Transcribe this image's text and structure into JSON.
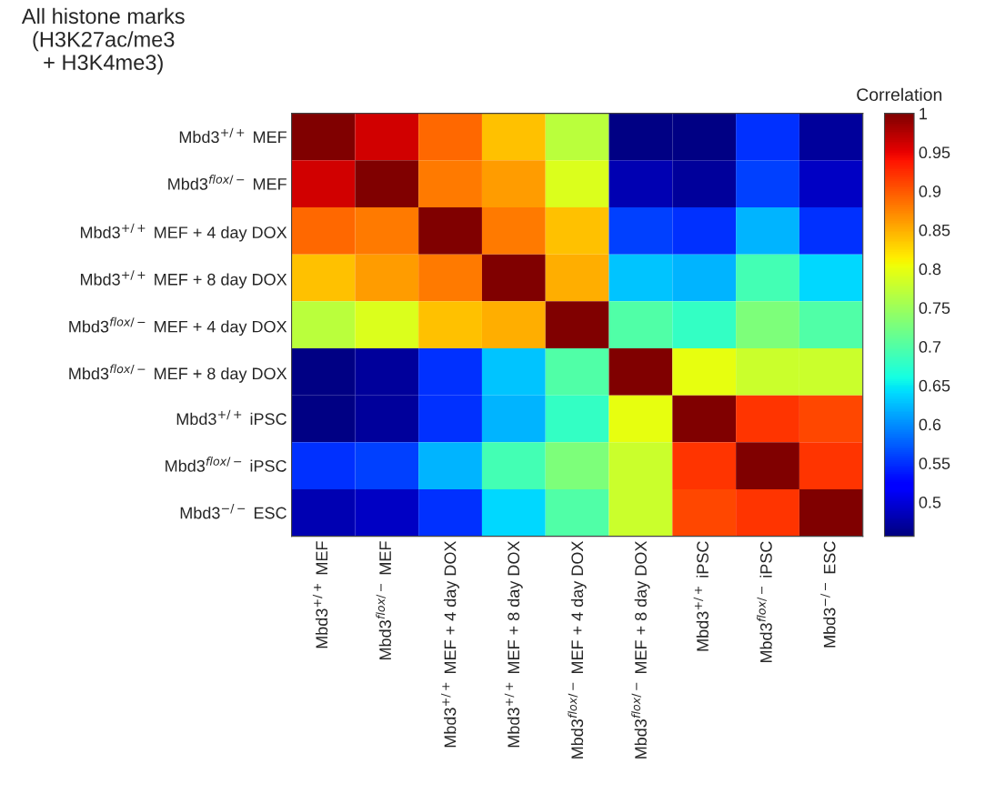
{
  "chart_data": {
    "type": "heatmap",
    "title": "All histone marks\n(H3K27ac/me3\n+ H3K4me3)",
    "clabel": "Correlation",
    "categories": [
      "Mbd3$^{+/+}$ MEF",
      "Mbd3$^{flox/−}$ MEF",
      "Mbd3$^{+/+}$ MEF + 4 day DOX",
      "Mbd3$^{+/+}$ MEF + 8 day DOX",
      "Mbd3$^{flox/−}$ MEF + 4 day DOX",
      "Mbd3$^{flox/−}$ MEF + 8 day DOX",
      "Mbd3$^{+/+}$ iPSC",
      "Mbd3$^{flox/−}$ iPSC",
      "Mbd3$^{−/−}$ ESC"
    ],
    "y_categories": [
      "Mbd3$^{+/+}$ MEF",
      "Mbd3$^{flox/−}$ MEF",
      "Mbd3$^{+/+}$ MEF + 4 day DOX",
      "Mbd3$^{+/+}$ MEF + 8 day DOX",
      "Mbd3$^{flox/−}$ MEF + 4 day DOX",
      "Mbd3$^{flox/−}$ MEF + 8 day DOX",
      "Mbd3$^{+/+}$ iPSC",
      "Mbd3$^{flox/−}$ iPSC",
      "Mbd3$^{−/−}$ ESC"
    ],
    "cells": [
      [
        1,
        0.96,
        0.89,
        0.84,
        0.77,
        0.46,
        0.46,
        0.55,
        0.47
      ],
      [
        0.96,
        1,
        0.88,
        0.86,
        0.79,
        0.48,
        0.47,
        0.56,
        0.49
      ],
      [
        0.89,
        0.88,
        1,
        0.88,
        0.84,
        0.56,
        0.55,
        0.62,
        0.55
      ],
      [
        0.84,
        0.86,
        0.88,
        1,
        0.85,
        0.63,
        0.62,
        0.69,
        0.64
      ],
      [
        0.77,
        0.79,
        0.84,
        0.85,
        1,
        0.7,
        0.68,
        0.73,
        0.7
      ],
      [
        0.46,
        0.47,
        0.55,
        0.63,
        0.7,
        1,
        0.8,
        0.78,
        0.78
      ],
      [
        0.46,
        0.47,
        0.55,
        0.62,
        0.68,
        0.8,
        1,
        0.92,
        0.91
      ],
      [
        0.55,
        0.56,
        0.62,
        0.69,
        0.73,
        0.78,
        0.92,
        1,
        0.92
      ],
      [
        0.48,
        0.49,
        0.55,
        0.64,
        0.7,
        0.78,
        0.91,
        0.92,
        1
      ]
    ],
    "clim": [
      0.456,
      1
    ],
    "cticks": [
      0.5,
      0.55,
      0.6,
      0.65,
      0.7,
      0.75,
      0.8,
      0.85,
      0.9,
      0.95,
      1
    ]
  }
}
